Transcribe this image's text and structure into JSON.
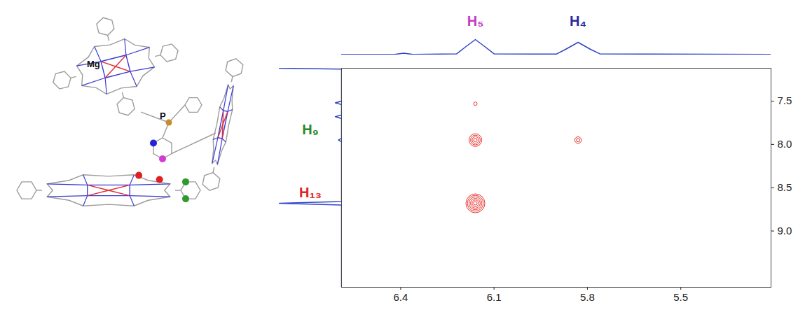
{
  "structure": {
    "metal": "Mg",
    "phosphorus": "P"
  },
  "chart_data": {
    "type": "contour",
    "color": "#e8322c",
    "xlim": [
      6.59,
      5.21
    ],
    "xticks": [
      6.4,
      6.1,
      5.8,
      5.5
    ],
    "ylim": [
      7.12,
      9.65
    ],
    "yticks": [
      7.5,
      {
        "value": 8,
        "label": "8.0"
      },
      8.5,
      {
        "value": 9,
        "label": "9.0"
      }
    ],
    "peaks": {
      "x": [
        6.16,
        5.83,
        6.16,
        6.16
      ],
      "y": [
        7.95,
        7.95,
        8.68,
        7.53
      ],
      "intensity": [
        0.7,
        0.35,
        1.0,
        0.08
      ]
    },
    "annotations": [
      {
        "text": "H₅",
        "color": "#c13fc1",
        "x": 6.16
      },
      {
        "text": "H₄",
        "color": "#2828a0",
        "x": 5.83
      },
      {
        "text": "H₉",
        "color": "#2a8a2a",
        "y": 7.95
      },
      {
        "text": "H₁₃",
        "color": "#e02424",
        "y": 8.68
      }
    ],
    "x_projection": {
      "color": "#2f43c8",
      "x": [
        6.59,
        6.42,
        6.39,
        6.36,
        6.22,
        6.19,
        6.16,
        6.13,
        6.1,
        5.9,
        5.87,
        5.83,
        5.79,
        5.76,
        5.6,
        5.21
      ],
      "values": [
        0.02,
        0.02,
        0.06,
        0.02,
        0.04,
        0.3,
        0.55,
        0.3,
        0.04,
        0.03,
        0.2,
        0.45,
        0.2,
        0.04,
        0.03,
        0.02
      ],
      "ylim": [
        0,
        1
      ]
    },
    "y_projection": {
      "color": "#2f43c8",
      "y": [
        7.12,
        7.13,
        7.5,
        7.52,
        7.54,
        7.66,
        7.68,
        7.7,
        7.93,
        7.95,
        7.97,
        8.66,
        8.68,
        8.7,
        9.65
      ],
      "values": [
        1,
        0,
        0,
        0.1,
        0,
        0,
        0.1,
        0,
        0,
        0.05,
        0,
        0,
        1,
        0,
        0
      ],
      "xlim": [
        1,
        0
      ]
    }
  }
}
